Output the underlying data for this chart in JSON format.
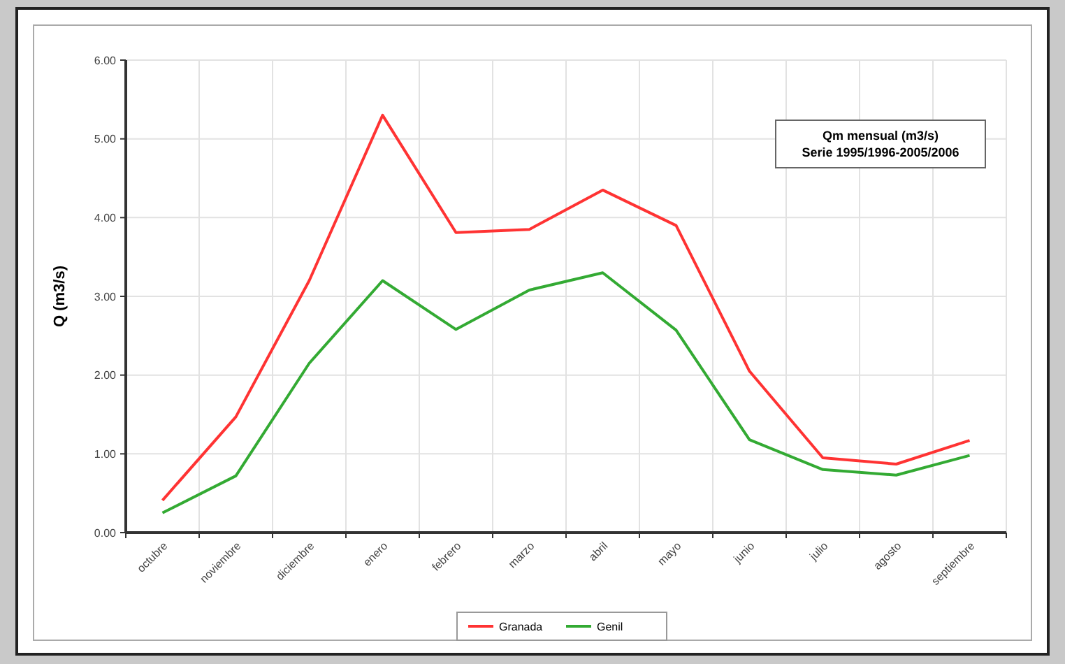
{
  "chart_data": {
    "type": "line",
    "ylabel": "Q (m3/s)",
    "annotations": [
      "Qm mensual (m3/s)",
      "Serie 1995/1996-2005/2006"
    ],
    "categories": [
      "octubre",
      "noviembre",
      "diciembre",
      "enero",
      "febrero",
      "marzo",
      "abril",
      "mayo",
      "junio",
      "julio",
      "agosto",
      "septiembre"
    ],
    "series": [
      {
        "name": "Granada",
        "color": "#ff3333",
        "values": [
          0.41,
          1.47,
          3.2,
          5.3,
          3.81,
          3.85,
          4.35,
          3.9,
          2.05,
          0.95,
          0.87,
          1.17
        ]
      },
      {
        "name": "Genil",
        "color": "#33aa33",
        "values": [
          0.25,
          0.72,
          2.15,
          3.2,
          2.58,
          3.08,
          3.3,
          2.57,
          1.18,
          0.8,
          0.73,
          0.98
        ]
      }
    ],
    "ylim": [
      0,
      6
    ],
    "yticks": [
      {
        "value": 0,
        "label": "0.00"
      },
      {
        "value": 1,
        "label": "1.00"
      },
      {
        "value": 2,
        "label": "2.00"
      },
      {
        "value": 3,
        "label": "3.00"
      },
      {
        "value": 4,
        "label": "4.00"
      },
      {
        "value": 5,
        "label": "5.00"
      },
      {
        "value": 6,
        "label": "6.00"
      }
    ],
    "grid": true,
    "legend": "bottom",
    "marker": "none",
    "line_style": "solid"
  }
}
